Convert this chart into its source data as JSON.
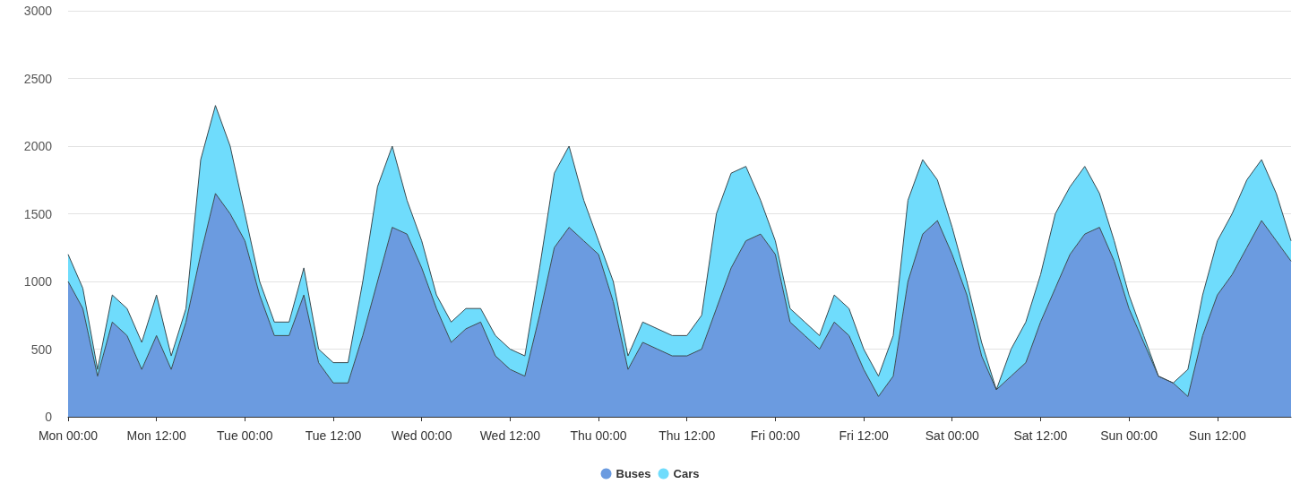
{
  "chart_data": {
    "type": "area",
    "stacked": true,
    "legend": "bottom",
    "grid": "y",
    "marker": "none",
    "categories": [
      "Mon 00:00",
      null,
      null,
      null,
      null,
      null,
      "Mon 12:00",
      null,
      null,
      null,
      null,
      null,
      "Tue 00:00",
      null,
      null,
      null,
      null,
      null,
      "Tue 12:00",
      null,
      null,
      null,
      null,
      null,
      "Wed 00:00",
      null,
      null,
      null,
      null,
      null,
      "Wed 12:00",
      null,
      null,
      null,
      null,
      null,
      "Thu 00:00",
      null,
      null,
      null,
      null,
      null,
      "Thu 12:00",
      null,
      null,
      null,
      null,
      null,
      "Fri 00:00",
      null,
      null,
      null,
      null,
      null,
      "Fri 12:00",
      null,
      null,
      null,
      null,
      null,
      "Sat 00:00",
      null,
      null,
      null,
      null,
      null,
      "Sat 12:00",
      null,
      null,
      null,
      null,
      null,
      "Sun 00:00",
      null,
      null,
      null,
      null,
      null,
      "Sun 12:00",
      null,
      null,
      null,
      null,
      null
    ],
    "series": [
      {
        "name": "Buses",
        "color": "#6b9be0",
        "values": [
          1000,
          800,
          300,
          700,
          600,
          350,
          600,
          350,
          700,
          1200,
          1650,
          1500,
          1300,
          900,
          600,
          600,
          900,
          400,
          250,
          250,
          600,
          1000,
          1400,
          1350,
          1100,
          800,
          550,
          650,
          700,
          450,
          350,
          300,
          750,
          1250,
          1400,
          1300,
          1200,
          850,
          350,
          550,
          500,
          450,
          450,
          500,
          800,
          1100,
          1300,
          1350,
          1200,
          700,
          600,
          500,
          700,
          600,
          350,
          150,
          300,
          1000,
          1350,
          1450,
          1200,
          900,
          450,
          200,
          300,
          400,
          700,
          950,
          1200,
          1350,
          1400,
          1150,
          800,
          550,
          300,
          250,
          150,
          600,
          900,
          1050,
          1250,
          1450,
          1300,
          1150
        ]
      },
      {
        "name": "Cars",
        "color": "#6fdcfc",
        "values": [
          200,
          150,
          50,
          200,
          200,
          200,
          300,
          100,
          100,
          700,
          650,
          500,
          200,
          100,
          100,
          100,
          200,
          100,
          150,
          150,
          400,
          700,
          600,
          250,
          200,
          100,
          150,
          150,
          100,
          150,
          150,
          150,
          350,
          550,
          600,
          300,
          100,
          150,
          100,
          150,
          150,
          150,
          150,
          250,
          700,
          700,
          550,
          250,
          100,
          100,
          100,
          100,
          200,
          200,
          150,
          150,
          300,
          600,
          550,
          300,
          200,
          100,
          100,
          0,
          200,
          300,
          350,
          550,
          500,
          500,
          250,
          150,
          100,
          50,
          0,
          0,
          200,
          300,
          400,
          450,
          500,
          450,
          350,
          150
        ]
      }
    ],
    "ylim": [
      0,
      3000
    ],
    "yticks": [
      0,
      500,
      1000,
      1500,
      2000,
      2500,
      3000
    ]
  }
}
